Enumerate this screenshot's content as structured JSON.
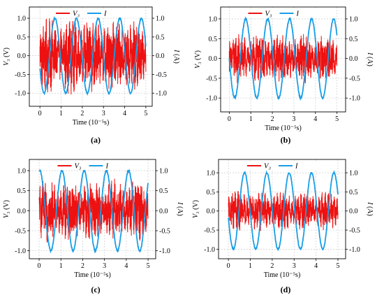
{
  "figure": {
    "colors": {
      "voltage": "#ee1111",
      "current": "#1a9ee6",
      "grid": "#cccccc"
    }
  },
  "chart_data": [
    {
      "type": "line",
      "caption": "(a)",
      "xlabel": "Time (10⁻⁵s)",
      "ylabel_left": "V₃ (V)",
      "ylabel_right": "I (A)",
      "xlim": [
        -0.5,
        5.3
      ],
      "ylim": [
        -1.35,
        1.3
      ],
      "xticks": [
        0,
        1,
        2,
        3,
        4,
        5
      ],
      "yticks": [
        -1.0,
        -0.5,
        0.0,
        0.5,
        1.0
      ],
      "grid": true,
      "legend": "top",
      "series": [
        {
          "name": "V₃",
          "kind": "noise",
          "amplitude": 0.95,
          "color": "#ee1111"
        },
        {
          "name": "I",
          "kind": "sine",
          "amplitude": 1.0,
          "period": 1.02,
          "phase_deg": 200,
          "color": "#1a9ee6"
        }
      ]
    },
    {
      "type": "line",
      "caption": "(b)",
      "xlabel": "Time (10⁻⁵s)",
      "ylabel_left": "V₃ (V)",
      "ylabel_right": "I (A)",
      "xlim": [
        -0.4,
        5.4
      ],
      "ylim": [
        -1.35,
        1.3
      ],
      "xticks": [
        0,
        1,
        2,
        3,
        4,
        5
      ],
      "yticks": [
        -1.0,
        -0.5,
        0.0,
        0.5,
        1.0
      ],
      "grid": true,
      "legend": "top",
      "series": [
        {
          "name": "V₃",
          "kind": "noise",
          "amplitude": 0.6,
          "color": "#ee1111"
        },
        {
          "name": "I",
          "kind": "sine",
          "amplitude": 1.0,
          "period": 1.02,
          "phase_deg": 180,
          "color": "#1a9ee6"
        }
      ]
    },
    {
      "type": "line",
      "caption": "(c)",
      "xlabel": "Time (10⁻⁵s)",
      "ylabel_left": "V₃ (V)",
      "ylabel_right": "I (A)",
      "xlim": [
        -0.45,
        5.35
      ],
      "ylim": [
        -1.2,
        1.28
      ],
      "xticks": [
        0,
        1,
        2,
        3,
        4,
        5
      ],
      "yticks": [
        -1.0,
        -0.5,
        0.0,
        0.5,
        1.0
      ],
      "grid": true,
      "legend": "top",
      "series": [
        {
          "name": "V₃",
          "kind": "noise",
          "amplitude": 0.75,
          "color": "#ee1111"
        },
        {
          "name": "I",
          "kind": "sine",
          "amplitude": 1.0,
          "period": 1.02,
          "phase_deg": 80,
          "color": "#1a9ee6"
        }
      ]
    },
    {
      "type": "line",
      "caption": "(d)",
      "xlabel": "Time (10⁻⁵s)",
      "ylabel_left": "V₃ (V)",
      "ylabel_right": "I (A)",
      "xlim": [
        -0.45,
        5.35
      ],
      "ylim": [
        -1.25,
        1.35
      ],
      "xticks": [
        0,
        1,
        2,
        3,
        4,
        5
      ],
      "yticks": [
        -1.0,
        -0.5,
        0.0,
        0.5,
        1.0
      ],
      "grid": true,
      "legend": "top",
      "series": [
        {
          "name": "V₃",
          "kind": "noise",
          "amplitude": 0.5,
          "color": "#ee1111"
        },
        {
          "name": "I",
          "kind": "sine",
          "amplitude": 1.0,
          "period": 1.02,
          "phase_deg": 190,
          "color": "#1a9ee6"
        }
      ]
    }
  ]
}
